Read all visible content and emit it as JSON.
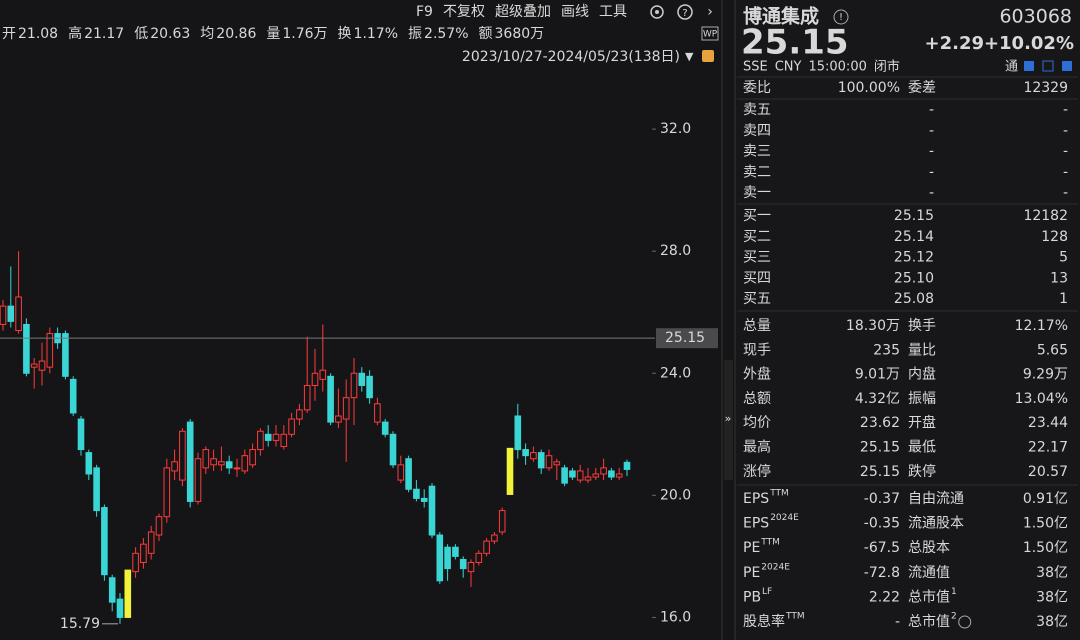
{
  "toolbar": {
    "buttons": [
      "F9",
      "不复权",
      "超级叠加",
      "画线",
      "工具"
    ],
    "badge": "WP"
  },
  "quote_bar": [
    {
      "label": "开",
      "value": "21.08",
      "color": "#ff4d4d"
    },
    {
      "label": "高",
      "value": "21.17",
      "color": "#ff4d4d"
    },
    {
      "label": "低",
      "value": "20.63",
      "color": "#3ccf4e"
    },
    {
      "label": "均",
      "value": "20.86",
      "color": "#3ccf4e"
    },
    {
      "label": "量",
      "value": "1.76万",
      "color": "#d8d8d8"
    },
    {
      "label": "换",
      "value": "1.17%",
      "color": "#d8d8d8"
    },
    {
      "label": "振",
      "value": "2.57%",
      "color": "#d8d8d8"
    },
    {
      "label": "额",
      "value": "3680万",
      "color": "#d8d8d8"
    }
  ],
  "date_range": "2023/10/27-2024/05/23(138日)",
  "chart": {
    "type": "candlestick",
    "ylim": [
      15.26,
      35.51
    ],
    "yticks": [
      {
        "value": 32,
        "label": "32.0"
      },
      {
        "value": 28,
        "label": "28.0"
      },
      {
        "value": 24,
        "label": "24.0"
      },
      {
        "value": 20,
        "label": "20.0"
      },
      {
        "value": 16,
        "label": "16.0"
      }
    ],
    "up_color": "#ff3b3b",
    "down_color": "#3ad6d6",
    "limit_up_color": "#f2f23a",
    "last_price": 25.15,
    "low_marker": 15.79,
    "candles": [
      {
        "open": 25.6,
        "high": 26.4,
        "low": 25.4,
        "close": 26.2
      },
      {
        "open": 26.2,
        "high": 27.5,
        "low": 25.5,
        "close": 25.7
      },
      {
        "open": 25.4,
        "high": 28.0,
        "low": 25.3,
        "close": 26.5
      },
      {
        "open": 25.6,
        "high": 25.8,
        "low": 23.9,
        "close": 24.0
      },
      {
        "open": 24.2,
        "high": 24.5,
        "low": 23.5,
        "close": 24.3
      },
      {
        "open": 24.1,
        "high": 25.0,
        "low": 23.6,
        "close": 24.4
      },
      {
        "open": 24.2,
        "high": 25.5,
        "low": 24.0,
        "close": 25.3
      },
      {
        "open": 25.3,
        "high": 25.5,
        "low": 24.8,
        "close": 25.0
      },
      {
        "open": 25.3,
        "high": 25.4,
        "low": 23.8,
        "close": 23.9
      },
      {
        "open": 23.8,
        "high": 23.9,
        "low": 22.6,
        "close": 22.7
      },
      {
        "open": 22.5,
        "high": 22.6,
        "low": 21.3,
        "close": 21.5
      },
      {
        "open": 21.4,
        "high": 21.5,
        "low": 20.5,
        "close": 20.7
      },
      {
        "open": 20.9,
        "high": 21.0,
        "low": 19.3,
        "close": 19.5
      },
      {
        "open": 19.6,
        "high": 19.7,
        "low": 17.2,
        "close": 17.4
      },
      {
        "open": 17.3,
        "high": 17.4,
        "low": 16.2,
        "close": 16.5
      },
      {
        "open": 16.6,
        "high": 16.8,
        "low": 15.79,
        "close": 16.0
      },
      {
        "open": 16.0,
        "high": 17.55,
        "low": 16.0,
        "close": 17.55,
        "limit_up": true
      },
      {
        "open": 17.5,
        "high": 18.3,
        "low": 17.3,
        "close": 18.1
      },
      {
        "open": 17.8,
        "high": 18.6,
        "low": 17.6,
        "close": 18.4
      },
      {
        "open": 18.1,
        "high": 19.0,
        "low": 17.9,
        "close": 18.8
      },
      {
        "open": 18.7,
        "high": 19.4,
        "low": 18.5,
        "close": 19.3
      },
      {
        "open": 19.3,
        "high": 21.2,
        "low": 19.1,
        "close": 20.9
      },
      {
        "open": 20.8,
        "high": 21.5,
        "low": 20.5,
        "close": 21.1
      },
      {
        "open": 20.5,
        "high": 22.2,
        "low": 20.3,
        "close": 22.1
      },
      {
        "open": 22.4,
        "high": 22.5,
        "low": 19.6,
        "close": 19.8
      },
      {
        "open": 19.8,
        "high": 21.4,
        "low": 19.7,
        "close": 21.2
      },
      {
        "open": 20.9,
        "high": 21.6,
        "low": 20.7,
        "close": 21.5
      },
      {
        "open": 21.0,
        "high": 21.5,
        "low": 20.8,
        "close": 21.2
      },
      {
        "open": 21.0,
        "high": 21.6,
        "low": 20.8,
        "close": 21.1
      },
      {
        "open": 21.1,
        "high": 21.3,
        "low": 20.7,
        "close": 20.9
      },
      {
        "open": 20.9,
        "high": 21.2,
        "low": 20.6,
        "close": 20.9
      },
      {
        "open": 20.8,
        "high": 21.5,
        "low": 20.7,
        "close": 21.3
      },
      {
        "open": 21.0,
        "high": 21.7,
        "low": 20.9,
        "close": 21.5
      },
      {
        "open": 21.5,
        "high": 22.2,
        "low": 21.3,
        "close": 22.1
      },
      {
        "open": 22.0,
        "high": 22.3,
        "low": 21.6,
        "close": 21.8
      },
      {
        "open": 21.8,
        "high": 22.3,
        "low": 21.6,
        "close": 22.0
      },
      {
        "open": 21.6,
        "high": 22.3,
        "low": 21.5,
        "close": 22.0
      },
      {
        "open": 22.0,
        "high": 22.7,
        "low": 21.9,
        "close": 22.5
      },
      {
        "open": 22.5,
        "high": 23.0,
        "low": 22.3,
        "close": 22.8
      },
      {
        "open": 22.8,
        "high": 25.2,
        "low": 22.7,
        "close": 23.6
      },
      {
        "open": 23.6,
        "high": 24.8,
        "low": 23.1,
        "close": 24.0
      },
      {
        "open": 23.8,
        "high": 25.6,
        "low": 23.4,
        "close": 24.1
      },
      {
        "open": 23.9,
        "high": 24.0,
        "low": 22.3,
        "close": 22.4
      },
      {
        "open": 22.4,
        "high": 23.5,
        "low": 22.2,
        "close": 22.6
      },
      {
        "open": 22.5,
        "high": 23.8,
        "low": 21.1,
        "close": 23.2
      },
      {
        "open": 23.2,
        "high": 24.5,
        "low": 22.3,
        "close": 24.0
      },
      {
        "open": 24.0,
        "high": 24.2,
        "low": 23.4,
        "close": 23.6
      },
      {
        "open": 23.9,
        "high": 24.1,
        "low": 23.0,
        "close": 23.2
      },
      {
        "open": 22.4,
        "high": 23.2,
        "low": 22.3,
        "close": 23.0
      },
      {
        "open": 22.4,
        "high": 22.5,
        "low": 21.9,
        "close": 22.0
      },
      {
        "open": 22.0,
        "high": 22.1,
        "low": 20.9,
        "close": 21.0
      },
      {
        "open": 20.5,
        "high": 21.3,
        "low": 20.4,
        "close": 21.0
      },
      {
        "open": 21.2,
        "high": 21.3,
        "low": 20.1,
        "close": 20.2
      },
      {
        "open": 20.2,
        "high": 20.5,
        "low": 19.8,
        "close": 19.9
      },
      {
        "open": 19.9,
        "high": 20.2,
        "low": 19.6,
        "close": 19.8
      },
      {
        "open": 20.3,
        "high": 20.4,
        "low": 18.6,
        "close": 18.7
      },
      {
        "open": 18.7,
        "high": 18.8,
        "low": 17.1,
        "close": 17.2
      },
      {
        "open": 18.3,
        "high": 18.4,
        "low": 17.2,
        "close": 17.6
      },
      {
        "open": 18.3,
        "high": 18.4,
        "low": 17.9,
        "close": 18.0
      },
      {
        "open": 17.9,
        "high": 18.0,
        "low": 17.3,
        "close": 17.6
      },
      {
        "open": 17.5,
        "high": 17.9,
        "low": 17.0,
        "close": 17.8
      },
      {
        "open": 17.8,
        "high": 18.2,
        "low": 17.7,
        "close": 18.1
      },
      {
        "open": 18.1,
        "high": 18.6,
        "low": 18.0,
        "close": 18.5
      },
      {
        "open": 18.5,
        "high": 18.8,
        "low": 18.4,
        "close": 18.7
      },
      {
        "open": 18.8,
        "high": 19.6,
        "low": 18.7,
        "close": 19.5
      },
      {
        "open": 20.03,
        "high": 21.54,
        "low": 20.03,
        "close": 21.54,
        "limit_up": true
      },
      {
        "open": 22.6,
        "high": 23.0,
        "low": 21.2,
        "close": 21.5
      },
      {
        "open": 21.5,
        "high": 21.7,
        "low": 21.0,
        "close": 21.3
      },
      {
        "open": 21.2,
        "high": 21.6,
        "low": 21.1,
        "close": 21.4
      },
      {
        "open": 21.4,
        "high": 21.5,
        "low": 20.7,
        "close": 20.9
      },
      {
        "open": 20.9,
        "high": 21.5,
        "low": 20.8,
        "close": 21.3
      },
      {
        "open": 21.0,
        "high": 21.2,
        "low": 20.5,
        "close": 21.1
      },
      {
        "open": 20.9,
        "high": 21.0,
        "low": 20.3,
        "close": 20.4
      },
      {
        "open": 20.8,
        "high": 20.9,
        "low": 20.5,
        "close": 20.6
      },
      {
        "open": 20.5,
        "high": 21.0,
        "low": 20.4,
        "close": 20.8
      },
      {
        "open": 20.5,
        "high": 20.9,
        "low": 20.4,
        "close": 20.6
      },
      {
        "open": 20.6,
        "high": 20.9,
        "low": 20.5,
        "close": 20.7
      },
      {
        "open": 20.7,
        "high": 21.2,
        "low": 20.5,
        "close": 20.9
      },
      {
        "open": 20.8,
        "high": 20.9,
        "low": 20.5,
        "close": 20.6
      },
      {
        "open": 20.6,
        "high": 20.9,
        "low": 20.5,
        "close": 20.7
      },
      {
        "open": 21.08,
        "high": 21.17,
        "low": 20.63,
        "close": 20.85
      }
    ]
  },
  "header": {
    "name": "博通集成",
    "code": "603068",
    "price": "25.15",
    "change": "+2.29",
    "change_pct": "+10.02%",
    "info": [
      "SSE",
      "CNY",
      "15:00:00",
      "闭市"
    ],
    "tag": "通"
  },
  "order_ratio": {
    "label": "委比",
    "value": "100.00%",
    "label2": "委差",
    "value2": "12329"
  },
  "asks": [
    {
      "label": "卖五",
      "price": "-",
      "volume": "-"
    },
    {
      "label": "卖四",
      "price": "-",
      "volume": "-"
    },
    {
      "label": "卖三",
      "price": "-",
      "volume": "-"
    },
    {
      "label": "卖二",
      "price": "-",
      "volume": "-"
    },
    {
      "label": "卖一",
      "price": "-",
      "volume": "-"
    }
  ],
  "bids": [
    {
      "label": "买一",
      "price": "25.15",
      "volume": "12182"
    },
    {
      "label": "买二",
      "price": "25.14",
      "volume": "128"
    },
    {
      "label": "买三",
      "price": "25.12",
      "volume": "5"
    },
    {
      "label": "买四",
      "price": "25.10",
      "volume": "13"
    },
    {
      "label": "买五",
      "price": "25.08",
      "volume": "1"
    }
  ],
  "stats": [
    {
      "label": "总量",
      "value": "18.30万",
      "color": "#d8d8d8",
      "label2": "换手",
      "value2": "12.17%",
      "color2": "#d8d8d8"
    },
    {
      "label": "现手",
      "value": "235",
      "color": "#d8d8d8",
      "label2": "量比",
      "value2": "5.65",
      "color2": "#d8d8d8"
    },
    {
      "label": "外盘",
      "value": "9.01万",
      "color": "#ff4d4d",
      "label2": "内盘",
      "value2": "9.29万",
      "color2": "#3ccf4e"
    },
    {
      "label": "总额",
      "value": "4.32亿",
      "color": "#d8d8d8",
      "label2": "振幅",
      "value2": "13.04%",
      "color2": "#d8d8d8"
    },
    {
      "label": "均价",
      "value": "23.62",
      "color": "#ff4d4d",
      "label2": "开盘",
      "value2": "23.44",
      "color2": "#ff4d4d"
    },
    {
      "label": "最高",
      "value": "25.15",
      "color": "#ff4d4d",
      "label2": "最低",
      "value2": "22.17",
      "color2": "#3ccf4e"
    },
    {
      "label": "涨停",
      "value": "25.15",
      "color": "#ff4d4d",
      "label2": "跌停",
      "value2": "20.57",
      "color2": "#3ccf4e"
    }
  ],
  "fundamentals": [
    {
      "label": "EPS",
      "sup": "TTM",
      "value": "-0.37",
      "label2": "自由流通",
      "value2": "0.91亿"
    },
    {
      "label": "EPS",
      "sup": "2024E",
      "value": "-0.35",
      "label2": "流通股本",
      "value2": "1.50亿"
    },
    {
      "label": "PE",
      "sup": "TTM",
      "value": "-67.5",
      "label2": "总股本",
      "value2": "1.50亿"
    },
    {
      "label": "PE",
      "sup": "2024E",
      "value": "-72.8",
      "label2": "流通值",
      "value2": "38亿"
    },
    {
      "label": "PB",
      "sup": "LF",
      "value": "2.22",
      "label2": "总市值",
      "sup2": "1",
      "value2": "38亿"
    },
    {
      "label": "股息率",
      "sup": "TTM",
      "value": "-",
      "label2": "总市值",
      "sup2": "2",
      "value2": "38亿"
    }
  ]
}
